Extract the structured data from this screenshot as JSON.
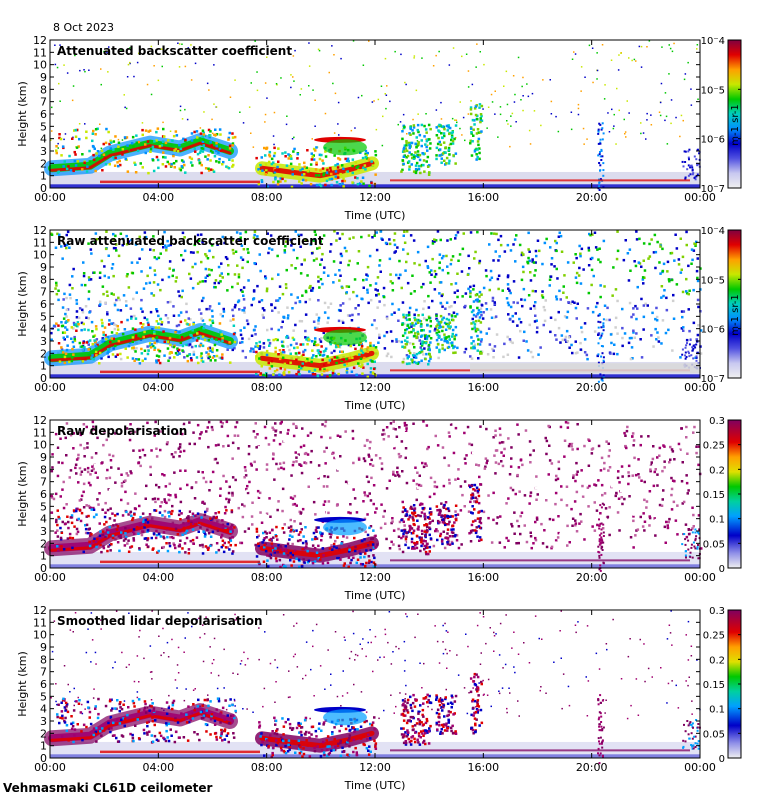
{
  "date": "8 Oct 2023",
  "footer": "Vehmasmaki CL61D ceilometer",
  "chart_data": [
    {
      "type": "heatmap",
      "title": "Attenuated backscatter coefficient",
      "xlabel": "Time (UTC)",
      "ylabel": "Height (km)",
      "x_ticks": [
        "00:00",
        "04:00",
        "08:00",
        "12:00",
        "16:00",
        "20:00",
        "00:00"
      ],
      "y_ticks": [
        "0",
        "1",
        "2",
        "3",
        "4",
        "5",
        "6",
        "7",
        "8",
        "9",
        "10",
        "11",
        "12"
      ],
      "ylim": [
        0,
        12
      ],
      "colorbar": {
        "scale": "log",
        "range": [
          1e-07,
          0.0001
        ],
        "labels": [
          "10^-4",
          "10^-5",
          "10^-6",
          "10^-7"
        ],
        "unit": "m-1 sr-1"
      }
    },
    {
      "type": "heatmap",
      "title": "Raw attenuated backscatter coefficient",
      "xlabel": "Time (UTC)",
      "ylabel": "Height (km)",
      "x_ticks": [
        "00:00",
        "04:00",
        "08:00",
        "12:00",
        "16:00",
        "20:00",
        "00:00"
      ],
      "y_ticks": [
        "0",
        "1",
        "2",
        "3",
        "4",
        "5",
        "6",
        "7",
        "8",
        "9",
        "10",
        "11",
        "12"
      ],
      "ylim": [
        0,
        12
      ],
      "colorbar": {
        "scale": "log",
        "range": [
          1e-07,
          0.0001
        ],
        "labels": [
          "10^-4",
          "10^-5",
          "10^-6",
          "10^-7"
        ],
        "unit": "m-1 sr-1"
      }
    },
    {
      "type": "heatmap",
      "title": "Raw depolarisation",
      "xlabel": "Time (UTC)",
      "ylabel": "Height (km)",
      "x_ticks": [
        "00:00",
        "04:00",
        "08:00",
        "12:00",
        "16:00",
        "20:00",
        "00:00"
      ],
      "y_ticks": [
        "0",
        "1",
        "2",
        "3",
        "4",
        "5",
        "6",
        "7",
        "8",
        "9",
        "10",
        "11",
        "12"
      ],
      "ylim": [
        0,
        12
      ],
      "colorbar": {
        "scale": "linear",
        "range": [
          0,
          0.3
        ],
        "labels": [
          "0.3",
          "0.25",
          "0.2",
          "0.15",
          "0.1",
          "0.05",
          "0"
        ],
        "unit": ""
      }
    },
    {
      "type": "heatmap",
      "title": "Smoothed lidar depolarisation",
      "xlabel": "Time (UTC)",
      "ylabel": "Height (km)",
      "x_ticks": [
        "00:00",
        "04:00",
        "08:00",
        "12:00",
        "16:00",
        "20:00",
        "00:00"
      ],
      "y_ticks": [
        "0",
        "1",
        "2",
        "3",
        "4",
        "5",
        "6",
        "7",
        "8",
        "9",
        "10",
        "11",
        "12"
      ],
      "ylim": [
        0,
        12
      ],
      "colorbar": {
        "scale": "linear",
        "range": [
          0,
          0.3
        ],
        "labels": [
          "0.3",
          "0.25",
          "0.2",
          "0.15",
          "0.1",
          "0.05",
          "0"
        ],
        "unit": ""
      }
    }
  ]
}
